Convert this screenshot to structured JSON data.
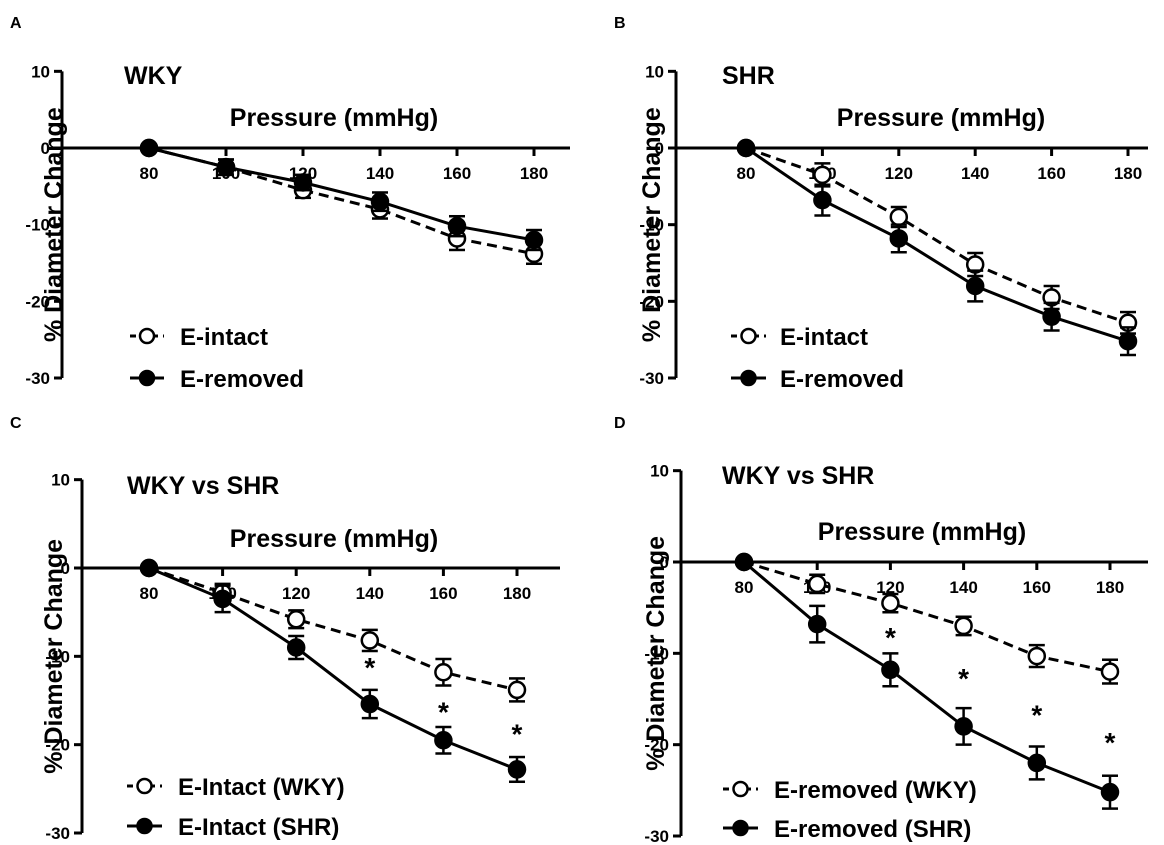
{
  "chart_data": [
    {
      "panel": "A",
      "type": "line",
      "title": "WKY",
      "xlabel": "Pressure (mmHg)",
      "ylabel": "% Diameter Change",
      "x": [
        80,
        100,
        120,
        140,
        160,
        180
      ],
      "xticks": [
        "80",
        "100",
        "120",
        "140",
        "160",
        "180"
      ],
      "yticks": [
        "10",
        "0",
        "-10",
        "-20",
        "-30"
      ],
      "ylim": [
        -30,
        10
      ],
      "grid": false,
      "legend_position": "bottom-left",
      "series": [
        {
          "name": "E-intact",
          "marker": "open",
          "line": "dashed",
          "values": [
            0,
            -2.5,
            -5.5,
            -8,
            -11.8,
            -13.8
          ],
          "errors": [
            0,
            1.0,
            1.0,
            1.2,
            1.5,
            1.3
          ]
        },
        {
          "name": "E-removed",
          "marker": "filled",
          "line": "solid",
          "values": [
            0,
            -2.5,
            -4.5,
            -7,
            -10.2,
            -12
          ],
          "errors": [
            0,
            1.0,
            1.0,
            1.2,
            1.3,
            1.3
          ]
        }
      ],
      "annotations": []
    },
    {
      "panel": "B",
      "type": "line",
      "title": "SHR",
      "xlabel": "Pressure (mmHg)",
      "ylabel": "% Diameter Change",
      "x": [
        80,
        100,
        120,
        140,
        160,
        180
      ],
      "xticks": [
        "80",
        "100",
        "120",
        "140",
        "160",
        "180"
      ],
      "yticks": [
        "10",
        "0",
        "-10",
        "-20",
        "-30"
      ],
      "ylim": [
        -30,
        10
      ],
      "grid": false,
      "legend_position": "bottom-left",
      "series": [
        {
          "name": "E-intact",
          "marker": "open",
          "line": "dashed",
          "values": [
            0,
            -3.5,
            -9,
            -15.2,
            -19.5,
            -22.8
          ],
          "errors": [
            0,
            1.5,
            1.3,
            1.5,
            1.5,
            1.4
          ]
        },
        {
          "name": "E-removed",
          "marker": "filled",
          "line": "solid",
          "values": [
            0,
            -6.8,
            -11.8,
            -18,
            -22,
            -25.2
          ],
          "errors": [
            0,
            2.0,
            1.8,
            2.0,
            1.8,
            1.8
          ]
        }
      ],
      "annotations": []
    },
    {
      "panel": "C",
      "type": "line",
      "title": "WKY vs SHR",
      "xlabel": "Pressure (mmHg)",
      "ylabel": "% Diameter Change",
      "x": [
        80,
        100,
        120,
        140,
        160,
        180
      ],
      "xticks": [
        "80",
        "100",
        "120",
        "140",
        "160",
        "180"
      ],
      "yticks": [
        "10",
        "0",
        "-10",
        "-20",
        "-30"
      ],
      "ylim": [
        -30,
        10
      ],
      "grid": false,
      "legend_position": "bottom-left",
      "series": [
        {
          "name": "E-Intact (WKY)",
          "marker": "open",
          "line": "dashed",
          "values": [
            0,
            -2.8,
            -5.8,
            -8.2,
            -11.8,
            -13.8
          ],
          "errors": [
            0,
            1.0,
            1.0,
            1.2,
            1.5,
            1.3
          ]
        },
        {
          "name": "E-Intact (SHR)",
          "marker": "filled",
          "line": "solid",
          "values": [
            0,
            -3.5,
            -9,
            -15.4,
            -19.5,
            -22.8
          ],
          "errors": [
            0,
            1.5,
            1.3,
            1.6,
            1.5,
            1.4
          ]
        }
      ],
      "annotations": [
        {
          "text": "*",
          "x": 140,
          "y": -11
        },
        {
          "text": "*",
          "x": 160,
          "y": -16
        },
        {
          "text": "*",
          "x": 180,
          "y": -18.5
        }
      ]
    },
    {
      "panel": "D",
      "type": "line",
      "title": "WKY vs SHR",
      "xlabel": "Pressure (mmHg)",
      "ylabel": "% Diameter Change",
      "x": [
        80,
        100,
        120,
        140,
        160,
        180
      ],
      "xticks": [
        "80",
        "100",
        "120",
        "140",
        "160",
        "180"
      ],
      "yticks": [
        "10",
        "0",
        "-10",
        "-20",
        "-30"
      ],
      "ylim": [
        -30,
        10
      ],
      "grid": false,
      "legend_position": "bottom-left",
      "series": [
        {
          "name": "E-removed (WKY)",
          "marker": "open",
          "line": "dashed",
          "values": [
            0,
            -2.4,
            -4.5,
            -7,
            -10.3,
            -12
          ],
          "errors": [
            0,
            1.0,
            1.0,
            1.0,
            1.2,
            1.3
          ]
        },
        {
          "name": "E-removed (SHR)",
          "marker": "filled",
          "line": "solid",
          "values": [
            0,
            -6.8,
            -11.8,
            -18,
            -22,
            -25.2
          ],
          "errors": [
            0,
            2.0,
            1.8,
            2.0,
            1.8,
            1.8
          ]
        }
      ],
      "annotations": [
        {
          "text": "*",
          "x": 120,
          "y": -8
        },
        {
          "text": "*",
          "x": 140,
          "y": -12.5
        },
        {
          "text": "*",
          "x": 160,
          "y": -16.5
        },
        {
          "text": "*",
          "x": 180,
          "y": -19.5
        }
      ]
    }
  ]
}
